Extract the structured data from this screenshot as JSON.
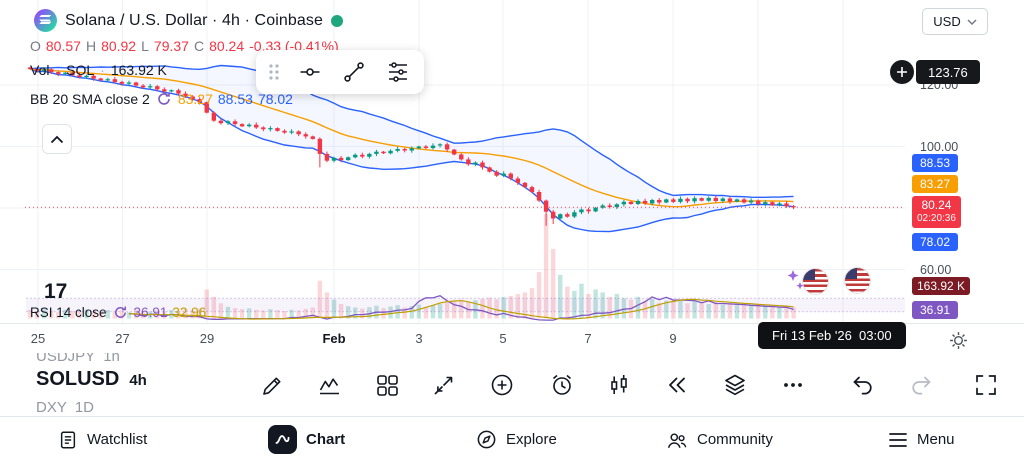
{
  "colors": {
    "up": "#089981",
    "down": "#F23645",
    "bb": "#2962FF",
    "bb_basis": "#F89E00",
    "rsi": "#7E57C2",
    "rsi_ma": "#BFA000",
    "grid": "#EEF1F6",
    "badge_volume": "#7C1B23",
    "text_dark": "#131722",
    "text_muted": "#787B86",
    "status_green": "#1FA67D"
  },
  "header": {
    "title": "Solana / U.S. Dollar · 4h · Coinbase",
    "currency": "USD",
    "ohlc": {
      "o_label": "O",
      "o": "80.57",
      "h_label": "H",
      "h": "80.92",
      "l_label": "L",
      "l": "79.37",
      "c_label": "C",
      "c": "80.24",
      "change": "-0.33 (-0.41%)"
    },
    "volume_row": {
      "label": "Vol",
      "sep": "·",
      "symbol": "SOL",
      "value": "163.92 K"
    },
    "bb_row": {
      "label": "BB 20 SMA close 2",
      "basis": "83.27",
      "upper": "88.53",
      "lower": "78.02"
    },
    "rsi_row": {
      "label": "RSI 14 close",
      "rsi": "36.91",
      "ma": "32.96"
    }
  },
  "clipped_text": "17",
  "price_axis": {
    "alert_value": "123.76",
    "grid_labels": [
      "120.00",
      "100.00",
      "60.00"
    ],
    "badges": [
      {
        "id": "bb-upper",
        "text": "88.53"
      },
      {
        "id": "bb-basis",
        "text": "83.27"
      },
      {
        "id": "last-price",
        "text": "80.24",
        "sub": "02:20:36"
      },
      {
        "id": "bb-lower",
        "text": "78.02"
      },
      {
        "id": "volume",
        "text": "163.92 K"
      },
      {
        "id": "rsi",
        "text": "36.91"
      }
    ]
  },
  "time_axis": {
    "ticks": [
      "25",
      "27",
      "29",
      "Feb",
      "3",
      "5",
      "7",
      "9"
    ],
    "crosshair_label": "Fri 13 Feb '26  03:00"
  },
  "toolbar": {
    "prev_symbol": "USDJPY",
    "prev_tf": "1h",
    "symbol": "SOLUSD",
    "timeframe": "4h",
    "next_symbol": "DXY",
    "next_tf": "1D"
  },
  "bottom_nav": [
    {
      "label": "Watchlist"
    },
    {
      "label": "Chart"
    },
    {
      "label": "Explore"
    },
    {
      "label": "Community"
    },
    {
      "label": "Menu"
    }
  ],
  "chart_data": {
    "type": "candlestick",
    "title": "SOLUSD · 4h · Coinbase",
    "price_gridlines": [
      120,
      100,
      80,
      60
    ],
    "last_price": 80.24,
    "closes": [
      125.2,
      124.6,
      125.1,
      124.2,
      123.6,
      124.0,
      123.2,
      122.6,
      123.0,
      122.1,
      121.5,
      121.9,
      121.0,
      120.4,
      120.8,
      119.8,
      119.2,
      119.6,
      118.6,
      117.9,
      118.3,
      117.2,
      116.3,
      115.4,
      114.4,
      111.0,
      108.4,
      107.6,
      108.2,
      107.3,
      106.6,
      107.1,
      106.2,
      105.6,
      106.0,
      105.1,
      104.5,
      104.9,
      104.0,
      103.3,
      102.5,
      97.6,
      95.4,
      96.3,
      95.6,
      96.5,
      97.3,
      96.7,
      97.6,
      98.3,
      97.8,
      98.6,
      99.2,
      98.7,
      99.4,
      100.0,
      99.5,
      100.3,
      100.7,
      99.0,
      97.4,
      95.8,
      94.2,
      94.8,
      93.2,
      91.8,
      90.5,
      91.2,
      89.6,
      88.2,
      86.8,
      85.2,
      82.4,
      78.8,
      76.6,
      78.0,
      77.2,
      78.6,
      79.5,
      78.9,
      80.1,
      80.8,
      80.3,
      81.2,
      82.0,
      81.3,
      82.3,
      81.5,
      82.6,
      81.8,
      82.8,
      82.0,
      83.0,
      82.2,
      83.2,
      82.4,
      83.3,
      82.3,
      83.1,
      82.1,
      82.8,
      81.8,
      82.4,
      81.3,
      81.9,
      80.9,
      81.5,
      80.6,
      80.24
    ],
    "volumes": [
      3,
      2.5,
      3.2,
      2.8,
      2.2,
      3,
      2.6,
      2.4,
      3.1,
      2.7,
      2.3,
      2.9,
      2.5,
      2.8,
      2.2,
      3,
      2.6,
      2.4,
      2.8,
      2.5,
      2.9,
      2.6,
      3.2,
      2.8,
      3.4,
      10,
      7.5,
      5.2,
      4,
      3.6,
      3.2,
      3.5,
      3,
      2.8,
      3.2,
      2.9,
      2.6,
      3,
      2.8,
      3.3,
      3.8,
      13,
      9,
      6.5,
      5,
      4.2,
      3.8,
      3.4,
      3.9,
      4.4,
      3.6,
      4.1,
      4.6,
      3.8,
      4.3,
      4.8,
      4,
      4.5,
      5,
      5.5,
      6,
      6.5,
      5.8,
      6.3,
      6.8,
      7.2,
      6.6,
      7.4,
      7.8,
      8.4,
      9,
      10.5,
      16,
      36,
      24,
      15,
      11,
      9.5,
      12,
      8.5,
      10,
      9,
      7.5,
      8.5,
      7,
      6.5,
      7.5,
      6,
      6.8,
      5.5,
      6.2,
      5.8,
      6.5,
      5.2,
      6,
      5.5,
      5,
      5.6,
      4.8,
      5.2,
      4.6,
      5,
      4.4,
      4.8,
      4.2,
      4.6,
      4,
      4.4,
      3.8
    ],
    "wick_low_overrides": {
      "41": 93.2,
      "73": 74.2,
      "74": 74.8
    },
    "indicators": {
      "bb": {
        "length": 20,
        "mult": 2,
        "upper_last": 88.53,
        "basis_last": 83.27,
        "lower_last": 78.02
      },
      "rsi": {
        "length": 14,
        "last": 36.91,
        "ma_last": 32.96
      },
      "volume_last": "163.92 K"
    }
  }
}
